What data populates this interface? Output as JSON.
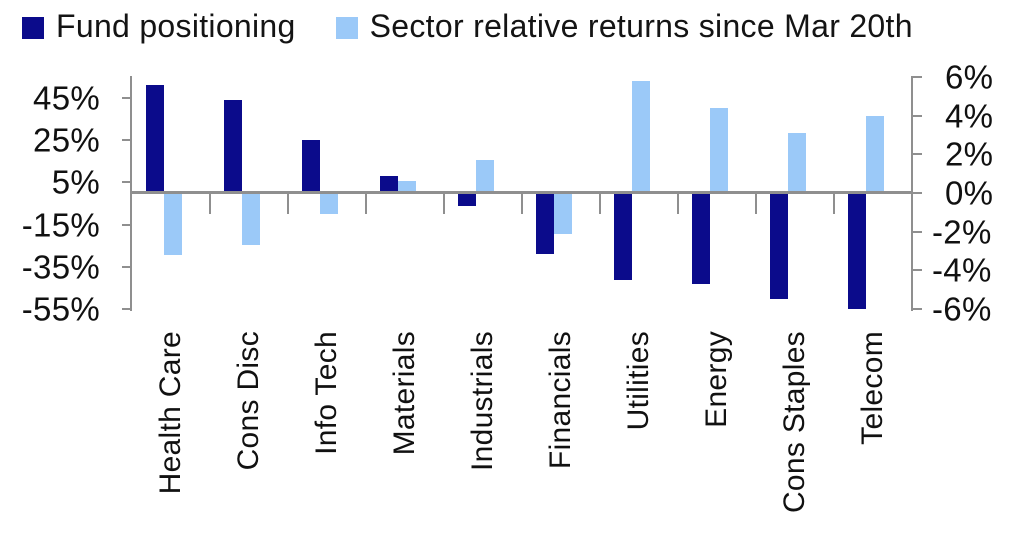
{
  "colors": {
    "navy": "#0b0b8b",
    "light_blue": "#9bc9f8",
    "axis_gray": "#8f8f8f"
  },
  "legend": [
    {
      "label": "Fund positioning",
      "color": "#0b0b8b"
    },
    {
      "label": "Sector relative returns since Mar 20th",
      "color": "#9bc9f8"
    }
  ],
  "chart_data": {
    "type": "bar",
    "title": "",
    "legend_position": "top",
    "grid": false,
    "categories": [
      "Health Care",
      "Cons Disc",
      "Info Tech",
      "Materials",
      "Industrials",
      "Financials",
      "Utilities",
      "Energy",
      "Cons Staples",
      "Telecom"
    ],
    "series": [
      {
        "name": "Fund positioning",
        "axis": "left",
        "unit": "%",
        "color": "#0b0b8b",
        "values": [
          51,
          44,
          25,
          8,
          -6,
          -29,
          -41,
          -43,
          -50,
          -55
        ]
      },
      {
        "name": "Sector relative returns since Mar 20th",
        "axis": "right",
        "unit": "%",
        "color": "#9bc9f8",
        "values": [
          -3.2,
          -2.7,
          -1.1,
          0.6,
          1.7,
          -2.1,
          5.8,
          4.4,
          3.1,
          4.0
        ]
      }
    ],
    "left_axis": {
      "tick_labels": [
        "45%",
        "25%",
        "5%",
        "-15%",
        "-35%",
        "-55%"
      ],
      "tick_values": [
        45,
        25,
        5,
        -15,
        -35,
        -55
      ],
      "range": [
        -55.3,
        55.3
      ]
    },
    "right_axis": {
      "tick_labels": [
        "6%",
        "4%",
        "2%",
        "0%",
        "-2%",
        "-4%",
        "-6%"
      ],
      "tick_values": [
        6,
        4,
        2,
        0,
        -2,
        -4,
        -6
      ],
      "range": [
        -6.05,
        6.05
      ]
    }
  }
}
